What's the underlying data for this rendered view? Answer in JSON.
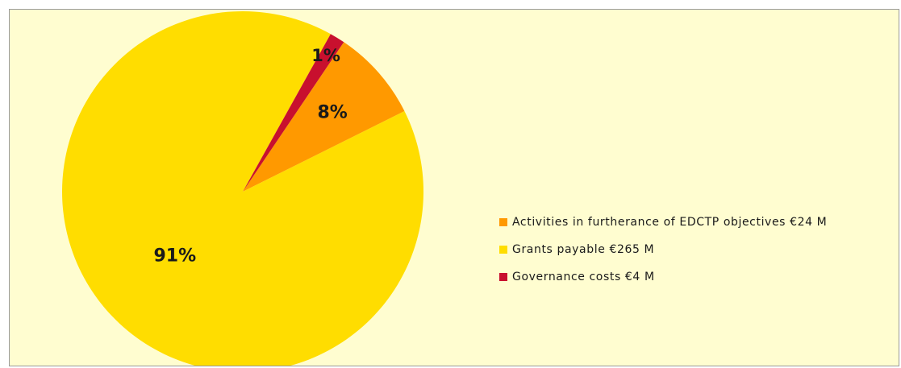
{
  "chart_data": {
    "type": "pie",
    "title": "",
    "slices": [
      {
        "label": "Activities in furtherance of EDCTP objectives €24 M",
        "value": 24,
        "percent_label": "8%",
        "color": "#ff9900"
      },
      {
        "label": "Grants payable €265  M",
        "value": 265,
        "percent_label": "91%",
        "color": "#ffdd00"
      },
      {
        "label": "Governance costs €4 M",
        "value": 4,
        "percent_label": "1%",
        "color": "#c8102e"
      }
    ],
    "legend_position": "right"
  },
  "colors": {
    "background": "#fffdd0",
    "border": "#9a9a9a"
  }
}
